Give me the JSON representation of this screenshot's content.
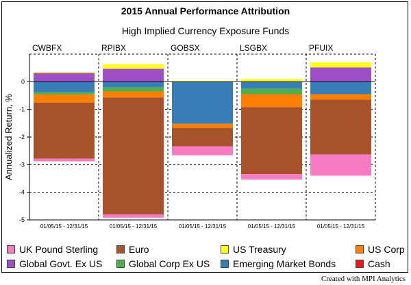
{
  "chart_data": {
    "type": "bar",
    "stacked": true,
    "title": "2015 Annual Performance Attribution",
    "subtitle": "High Implied Currency Exposure Funds",
    "ylabel": "Annualized Return, %",
    "ylim": [
      -5,
      1
    ],
    "yticks": [
      -5,
      -4,
      -3,
      -2,
      -1,
      0
    ],
    "date_range_label": "01/05/15 - 12/31/15",
    "credit": "Created with MPI Analytics",
    "series": [
      {
        "name": "UK Pound Sterling",
        "color": "#f77bc2"
      },
      {
        "name": "Euro",
        "color": "#a6522a"
      },
      {
        "name": "US Treasury",
        "color": "#ffff1a"
      },
      {
        "name": "US Corp",
        "color": "#ff8000"
      },
      {
        "name": "Global Govt. Ex US",
        "color": "#9f4fc5"
      },
      {
        "name": "Global Corp Ex US",
        "color": "#4faf4f"
      },
      {
        "name": "Emerging Market Bonds",
        "color": "#377eb8"
      },
      {
        "name": "Cash",
        "color": "#e41a1c"
      }
    ],
    "funds": [
      {
        "name": "CWBFX",
        "stack": [
          {
            "series": "Global Govt. Ex US",
            "value": 0.32
          },
          {
            "series": "US Treasury",
            "value": 0.03
          },
          {
            "series": "Emerging Market Bonds",
            "value": -0.38
          },
          {
            "series": "Global Corp Ex US",
            "value": -0.08
          },
          {
            "series": "US Corp",
            "value": -0.3
          },
          {
            "series": "Euro",
            "value": -2.02
          },
          {
            "series": "UK Pound Sterling",
            "value": -0.1
          }
        ]
      },
      {
        "name": "RPIBX",
        "stack": [
          {
            "series": "Global Govt. Ex US",
            "value": 0.47
          },
          {
            "series": "US Treasury",
            "value": 0.16
          },
          {
            "series": "Emerging Market Bonds",
            "value": -0.2
          },
          {
            "series": "Global Corp Ex US",
            "value": -0.15
          },
          {
            "series": "US Corp",
            "value": -0.22
          },
          {
            "series": "Euro",
            "value": -4.23
          },
          {
            "series": "UK Pound Sterling",
            "value": -0.12
          }
        ]
      },
      {
        "name": "GOBSX",
        "stack": [
          {
            "series": "US Treasury",
            "value": 0.03
          },
          {
            "series": "Emerging Market Bonds",
            "value": -1.52
          },
          {
            "series": "US Corp",
            "value": -0.15
          },
          {
            "series": "Euro",
            "value": -0.67
          },
          {
            "series": "UK Pound Sterling",
            "value": -0.32
          }
        ]
      },
      {
        "name": "LSGBX",
        "stack": [
          {
            "series": "US Treasury",
            "value": 0.1
          },
          {
            "series": "Emerging Market Bonds",
            "value": -0.25
          },
          {
            "series": "Global Corp Ex US",
            "value": -0.2
          },
          {
            "series": "US Corp",
            "value": -0.47
          },
          {
            "series": "Euro",
            "value": -2.42
          },
          {
            "series": "UK Pound Sterling",
            "value": -0.2
          }
        ]
      },
      {
        "name": "PFUIX",
        "stack": [
          {
            "series": "Global Govt. Ex US",
            "value": 0.52
          },
          {
            "series": "US Treasury",
            "value": 0.18
          },
          {
            "series": "Emerging Market Bonds",
            "value": -0.45
          },
          {
            "series": "US Corp",
            "value": -0.2
          },
          {
            "series": "Euro",
            "value": -1.98
          },
          {
            "series": "UK Pound Sterling",
            "value": -0.77
          }
        ]
      }
    ]
  }
}
